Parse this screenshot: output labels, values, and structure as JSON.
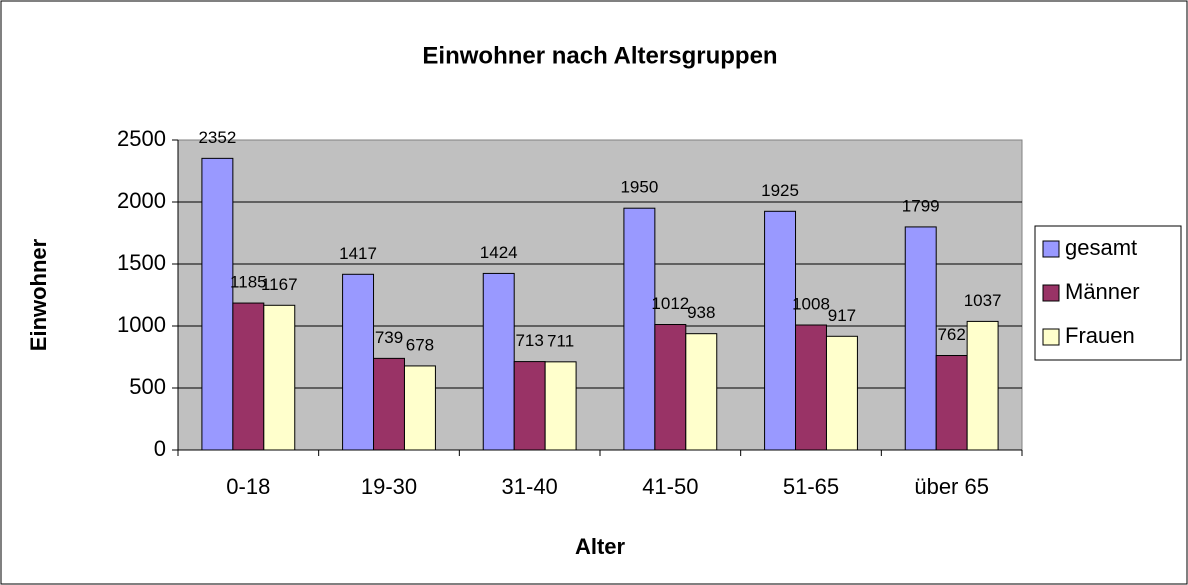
{
  "chart_data": {
    "type": "bar",
    "title": "Einwohner nach Altersgruppen",
    "x_label": "Alter",
    "y_label": "Einwohner",
    "categories": [
      "0-18",
      "19-30",
      "31-40",
      "41-50",
      "51-65",
      "über 65"
    ],
    "series": [
      {
        "name": "gesamt",
        "color": "#9999ff",
        "values": [
          2352,
          1417,
          1424,
          1950,
          1925,
          1799
        ]
      },
      {
        "name": "Männer",
        "color": "#993366",
        "values": [
          1185,
          739,
          713,
          1012,
          1008,
          762
        ]
      },
      {
        "name": "Frauen",
        "color": "#ffffcc",
        "values": [
          1167,
          678,
          711,
          938,
          917,
          1037
        ]
      }
    ],
    "ylim": [
      0,
      2500
    ],
    "yticks": [
      0,
      500,
      1000,
      1500,
      2000,
      2500
    ],
    "grid": true,
    "legend": "right",
    "plot_background": "#c0c0c0"
  }
}
